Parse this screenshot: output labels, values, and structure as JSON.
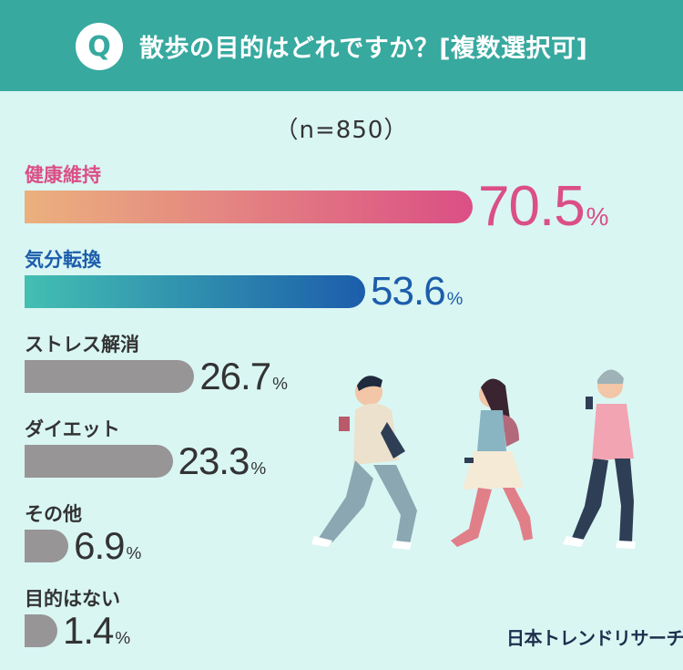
{
  "header": {
    "badge": "Q",
    "question": "散歩の目的はどれですか？[複数選択可]"
  },
  "sample_note": "（n=850）",
  "chart_data": {
    "type": "bar",
    "orientation": "horizontal",
    "title": "散歩の目的はどれですか？[複数選択可]",
    "subtitle": "（n=850）",
    "categories": [
      "健康維持",
      "気分転換",
      "ストレス解消",
      "ダイエット",
      "その他",
      "目的はない"
    ],
    "values": [
      70.5,
      53.6,
      26.7,
      23.3,
      6.9,
      1.4
    ],
    "value_labels": [
      "70.5",
      "53.6",
      "26.7",
      "23.3",
      "6.9",
      "1.4"
    ],
    "unit": "%",
    "xlim": [
      0,
      100
    ],
    "grid": false,
    "legend": "none",
    "colors": {
      "bar_1_gradient": [
        "#ebb17e",
        "#db4f85"
      ],
      "bar_2_gradient": [
        "#43bfb2",
        "#1c5dab"
      ],
      "bar_other": "#989596",
      "label_1": "#db4f85",
      "label_2": "#1c5dab",
      "label_other": "#333333"
    }
  },
  "illustration": {
    "description_icon": "walking-people-illustration"
  },
  "logo": "日本トレンドリサーチ",
  "colors": {
    "header_bg": "#37a99f",
    "page_bg": "#d9f6f3"
  }
}
